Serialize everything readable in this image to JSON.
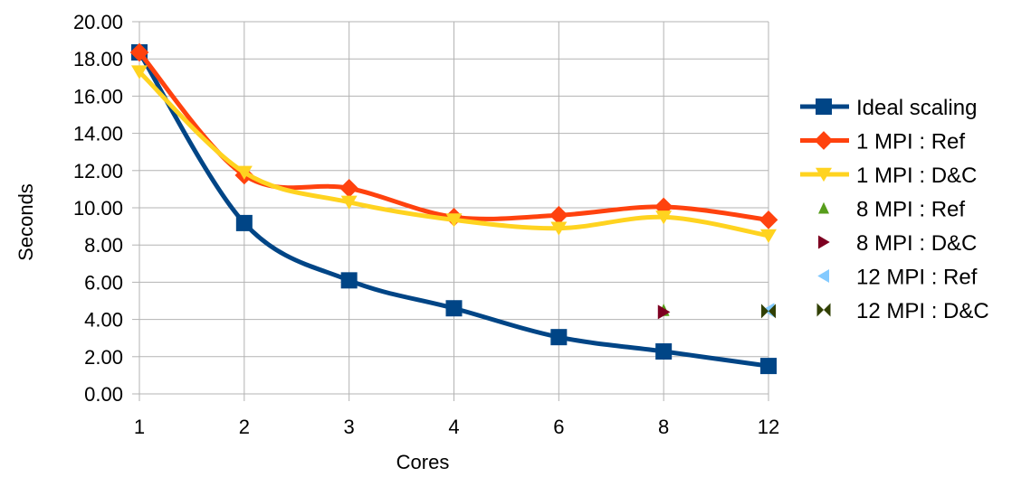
{
  "chart_data": {
    "type": "line",
    "xlabel": "Cores",
    "ylabel": "Seconds",
    "categories": [
      "1",
      "2",
      "3",
      "4",
      "6",
      "8",
      "12"
    ],
    "ylim": [
      0,
      20
    ],
    "yticks": [
      "0.00",
      "2.00",
      "4.00",
      "6.00",
      "8.00",
      "10.00",
      "12.00",
      "14.00",
      "16.00",
      "18.00",
      "20.00"
    ],
    "grid": true,
    "legend_position": "right",
    "series": [
      {
        "name": "Ideal scaling",
        "color": "#004586",
        "marker": "square",
        "line": true,
        "values": [
          18.35,
          9.18,
          6.1,
          4.6,
          3.05,
          2.28,
          1.5
        ]
      },
      {
        "name": "1 MPI : Ref",
        "color": "#ff420e",
        "marker": "diamond",
        "line": true,
        "values": [
          18.35,
          11.75,
          11.05,
          9.5,
          9.6,
          10.05,
          9.35
        ]
      },
      {
        "name": "1 MPI : D&C",
        "color": "#ffd320",
        "marker": "triangle-down",
        "line": true,
        "values": [
          17.3,
          11.9,
          10.3,
          9.35,
          8.9,
          9.5,
          8.5
        ]
      },
      {
        "name": "8 MPI : Ref",
        "color": "#579d1c",
        "marker": "triangle-up",
        "line": false,
        "values": [
          null,
          null,
          null,
          null,
          null,
          4.5,
          null
        ]
      },
      {
        "name": "8 MPI : D&C",
        "color": "#7e0021",
        "marker": "triangle-right",
        "line": false,
        "values": [
          null,
          null,
          null,
          null,
          null,
          4.4,
          null
        ]
      },
      {
        "name": "12 MPI : Ref",
        "color": "#83caff",
        "marker": "triangle-left",
        "line": false,
        "values": [
          null,
          null,
          null,
          null,
          null,
          null,
          4.5
        ]
      },
      {
        "name": "12 MPI : D&C",
        "color": "#314004",
        "marker": "bowtie",
        "line": false,
        "values": [
          null,
          null,
          null,
          null,
          null,
          null,
          4.45
        ]
      }
    ]
  }
}
